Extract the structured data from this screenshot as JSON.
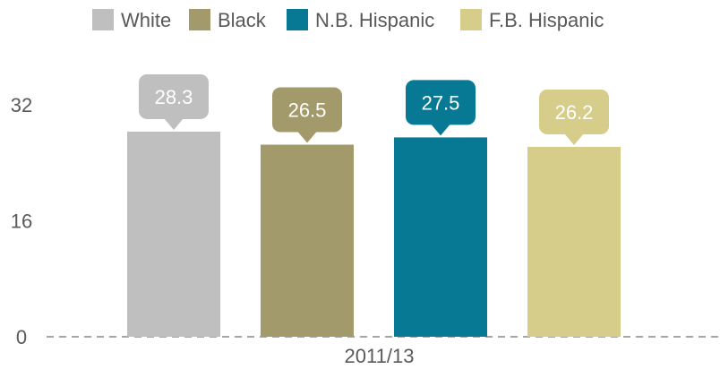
{
  "chart_data": {
    "type": "bar",
    "title": "",
    "xlabel": "",
    "ylabel": "",
    "categories": [
      "2011/13"
    ],
    "series": [
      {
        "name": "White",
        "values": [
          28.3
        ],
        "color": "#bfbfbf"
      },
      {
        "name": "Black",
        "values": [
          26.5
        ],
        "color": "#a39a6b"
      },
      {
        "name": "N.B. Hispanic",
        "values": [
          27.5
        ],
        "color": "#077994"
      },
      {
        "name": "F.B. Hispanic",
        "values": [
          26.2
        ],
        "color": "#d6cd8a"
      }
    ],
    "ylim": [
      0,
      32
    ],
    "yticks": [
      0,
      16,
      32
    ],
    "grid": false,
    "legend": "top",
    "data_labels": true
  }
}
